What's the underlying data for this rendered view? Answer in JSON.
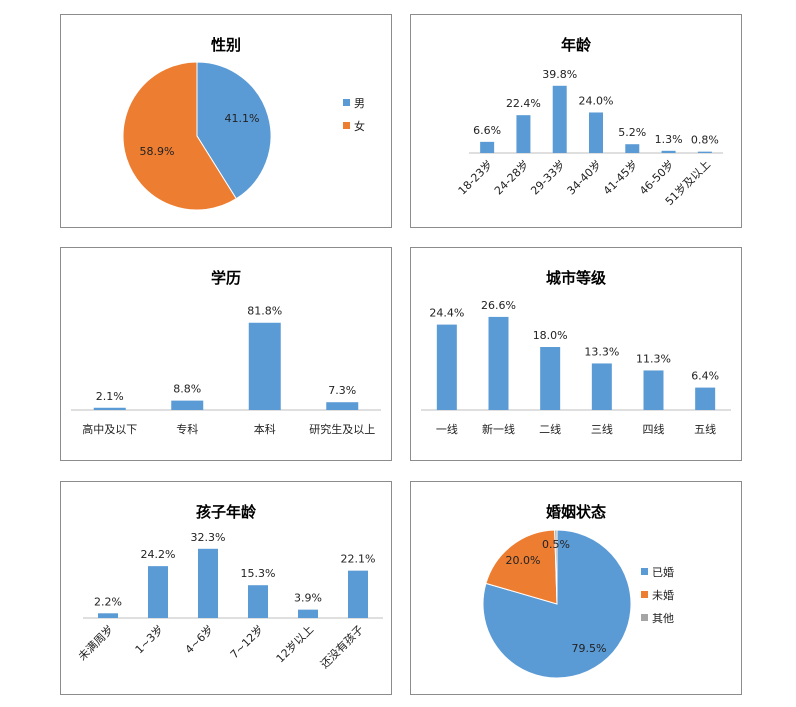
{
  "chart_data": [
    {
      "id": "gender",
      "type": "pie",
      "title": "性别",
      "series": [
        {
          "name": "男",
          "value": 41.1,
          "label": "41.1%",
          "color": "#5b9bd5"
        },
        {
          "name": "女",
          "value": 58.9,
          "label": "58.9%",
          "color": "#ed7d31"
        }
      ],
      "legend": "right"
    },
    {
      "id": "age",
      "type": "bar",
      "title": "年龄",
      "categories": [
        "18-23岁",
        "24-28岁",
        "29-33岁",
        "34-40岁",
        "41-45岁",
        "46-50岁",
        "51岁及以上"
      ],
      "values": [
        6.6,
        22.4,
        39.8,
        24.0,
        5.2,
        1.3,
        0.8
      ],
      "value_labels": [
        "6.6%",
        "22.4%",
        "39.8%",
        "24.0%",
        "5.2%",
        "1.3%",
        "0.8%"
      ],
      "ylim": [
        0,
        45
      ],
      "tick_rotation": "45deg",
      "color": "#5b9bd5"
    },
    {
      "id": "education",
      "type": "bar",
      "title": "学历",
      "categories": [
        "高中及以下",
        "专科",
        "本科",
        "研究生及以上"
      ],
      "values": [
        2.1,
        8.8,
        81.8,
        7.3
      ],
      "value_labels": [
        "2.1%",
        "8.8%",
        "81.8%",
        "7.3%"
      ],
      "ylim": [
        0,
        90
      ],
      "color": "#5b9bd5"
    },
    {
      "id": "city",
      "type": "bar",
      "title": "城市等级",
      "categories": [
        "一线",
        "新一线",
        "二线",
        "三线",
        "四线",
        "五线"
      ],
      "values": [
        24.4,
        26.6,
        18.0,
        13.3,
        11.3,
        6.4
      ],
      "value_labels": [
        "24.4%",
        "26.6%",
        "18.0%",
        "13.3%",
        "11.3%",
        "6.4%"
      ],
      "ylim": [
        0,
        30
      ],
      "color": "#5b9bd5"
    },
    {
      "id": "child_age",
      "type": "bar",
      "title": "孩子年龄",
      "categories": [
        "未满周岁",
        "1~3岁",
        "4~6岁",
        "7~12岁",
        "12岁以上",
        "还没有孩子"
      ],
      "values": [
        2.2,
        24.2,
        32.3,
        15.3,
        3.9,
        22.1
      ],
      "value_labels": [
        "2.2%",
        "24.2%",
        "32.3%",
        "15.3%",
        "3.9%",
        "22.1%"
      ],
      "ylim": [
        0,
        35
      ],
      "tick_rotation": "45deg",
      "color": "#5b9bd5"
    },
    {
      "id": "marital",
      "type": "pie",
      "title": "婚姻状态",
      "series": [
        {
          "name": "已婚",
          "value": 79.5,
          "label": "79.5%",
          "color": "#5b9bd5"
        },
        {
          "name": "未婚",
          "value": 20.0,
          "label": "20.0%",
          "color": "#ed7d31"
        },
        {
          "name": "其他",
          "value": 0.5,
          "label": "0.5%",
          "color": "#a5a5a5"
        }
      ],
      "legend": "right"
    }
  ]
}
